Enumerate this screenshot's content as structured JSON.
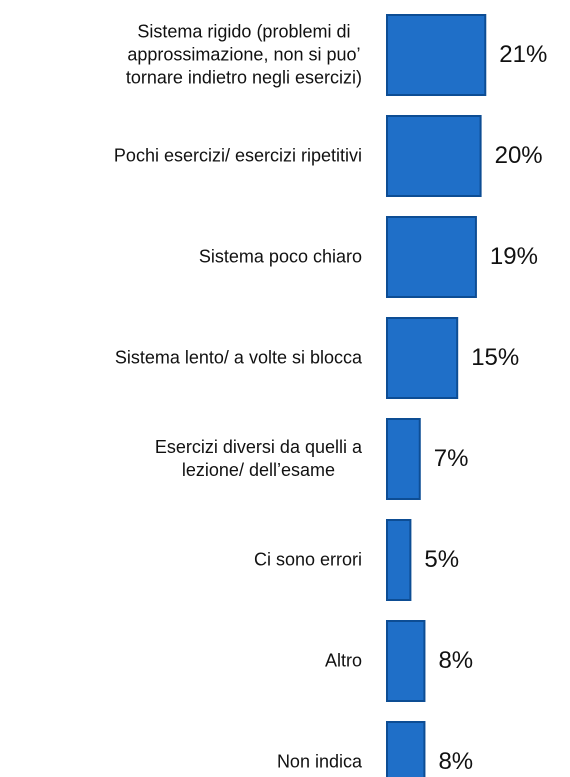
{
  "chart_data": {
    "type": "bar",
    "orientation": "horizontal",
    "categories": [
      "Sistema rigido (problemi di\napprossimazione, non si puo’\ntornare indietro negli esercizi)",
      "Pochi esercizi/ esercizi ripetitivi",
      "Sistema poco chiaro",
      "Sistema lento/ a volte si blocca",
      "Esercizi diversi da quelli a\nlezione/ dell’esame",
      "Ci sono errori",
      "Altro",
      "Non indica"
    ],
    "values": [
      21,
      20,
      19,
      15,
      7,
      5,
      8,
      8
    ],
    "value_labels": [
      "21%",
      "20%",
      "19%",
      "15%",
      "7%",
      "5%",
      "8%",
      "8%"
    ],
    "color": "#1f6fc8",
    "xlim": [
      0,
      25
    ]
  }
}
